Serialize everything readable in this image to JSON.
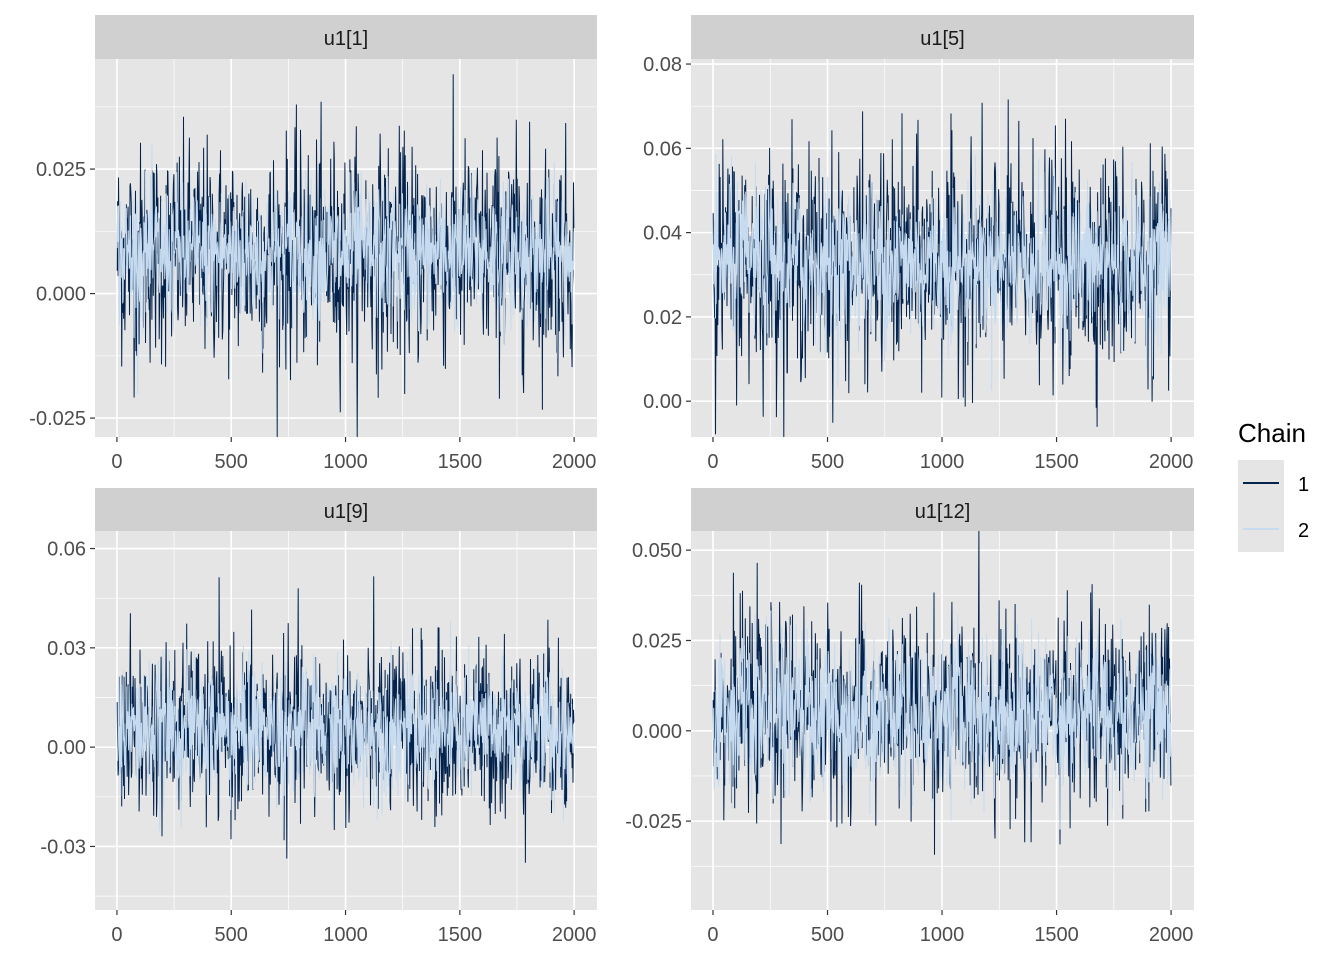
{
  "chart_data": {
    "type": "line",
    "title": "",
    "xlabel": "",
    "ylabel": "",
    "legend": {
      "title": "Chain",
      "entries": [
        "1",
        "2"
      ],
      "placement": "right"
    },
    "colors": {
      "1": "#03234d",
      "2": "#c6dbef"
    },
    "panel_background": "#e5e5e5",
    "strip_background": "#d0d0d0",
    "iterations": 2000,
    "note": "trace values summarized as per-chain mean/sd (estimated)",
    "panels": [
      {
        "title": "u1[1]",
        "xlim": [
          -96,
          2100
        ],
        "ylim": [
          -0.0288,
          0.0471
        ],
        "xticks": [
          0,
          500,
          1000,
          1500,
          2000
        ],
        "xtick_labels": [
          "0",
          "500",
          "1000",
          "1500",
          "2000"
        ],
        "yticks": [
          -0.025,
          0,
          0.025
        ],
        "ytick_labels": [
          "-0.025",
          "0.000",
          "0.025"
        ],
        "chains": [
          {
            "chain": "1",
            "mean": 0.008,
            "sd": 0.011
          },
          {
            "chain": "2",
            "mean": 0.008,
            "sd": 0.007
          }
        ]
      },
      {
        "title": "u1[5]",
        "xlim": [
          -96,
          2100
        ],
        "ylim": [
          -0.0085,
          0.0812
        ],
        "xticks": [
          0,
          500,
          1000,
          1500,
          2000
        ],
        "xtick_labels": [
          "0",
          "500",
          "1000",
          "1500",
          "2000"
        ],
        "yticks": [
          0,
          0.02,
          0.04,
          0.06,
          0.08
        ],
        "ytick_labels": [
          "0.00",
          "0.02",
          "0.04",
          "0.06",
          "0.08"
        ],
        "chains": [
          {
            "chain": "1",
            "mean": 0.033,
            "sd": 0.013
          },
          {
            "chain": "2",
            "mean": 0.033,
            "sd": 0.009
          }
        ]
      },
      {
        "title": "u1[9]",
        "xlim": [
          -96,
          2100
        ],
        "ylim": [
          -0.0492,
          0.0653
        ],
        "xticks": [
          0,
          500,
          1000,
          1500,
          2000
        ],
        "xtick_labels": [
          "0",
          "500",
          "1000",
          "1500",
          "2000"
        ],
        "yticks": [
          -0.03,
          0,
          0.03,
          0.06
        ],
        "ytick_labels": [
          "-0.03",
          "0.00",
          "0.03",
          "0.06"
        ],
        "chains": [
          {
            "chain": "1",
            "mean": 0.005,
            "sd": 0.013
          },
          {
            "chain": "2",
            "mean": 0.005,
            "sd": 0.01
          }
        ]
      },
      {
        "title": "u1[12]",
        "xlim": [
          -96,
          2100
        ],
        "ylim": [
          -0.0496,
          0.0553
        ],
        "xticks": [
          0,
          500,
          1000,
          1500,
          2000
        ],
        "xtick_labels": [
          "0",
          "500",
          "1000",
          "1500",
          "2000"
        ],
        "yticks": [
          -0.025,
          0,
          0.025,
          0.05
        ],
        "ytick_labels": [
          "-0.025",
          "0.000",
          "0.025",
          "0.050"
        ],
        "chains": [
          {
            "chain": "1",
            "mean": 0.005,
            "sd": 0.013
          },
          {
            "chain": "2",
            "mean": 0.005,
            "sd": 0.011
          }
        ]
      }
    ]
  }
}
